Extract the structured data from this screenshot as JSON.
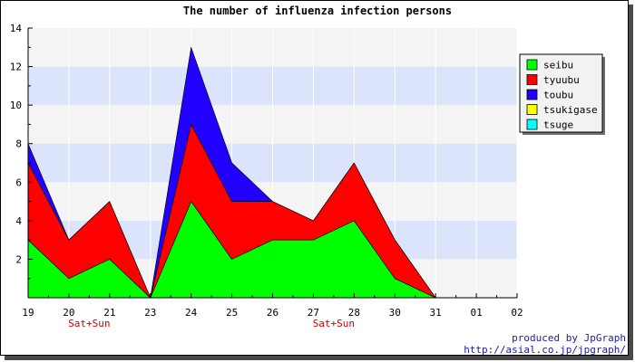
{
  "chart_data": {
    "type": "area",
    "title": "The number of influenza infection persons",
    "x_ticks": [
      "19",
      "20",
      "21",
      "23",
      "24",
      "25",
      "26",
      "27",
      "28",
      "30",
      "31",
      "01",
      "02"
    ],
    "weekend_labels": [
      {
        "after": "20",
        "text": "Sat+Sun"
      },
      {
        "after": "27",
        "text": "Sat+Sun"
      }
    ],
    "y_range": [
      0,
      14
    ],
    "y_ticks": [
      2,
      4,
      6,
      8,
      10,
      12,
      14
    ],
    "stacked": true,
    "grid": "horizontal bands",
    "legend_position": "right",
    "series": [
      {
        "name": "seibu",
        "color": "#00ff00",
        "values": [
          3,
          1,
          2,
          0,
          5,
          2,
          3,
          3,
          4,
          1,
          0,
          null,
          null
        ]
      },
      {
        "name": "tyuubu",
        "color": "#ff0000",
        "values": [
          4,
          2,
          3,
          0,
          4,
          3,
          2,
          1,
          3,
          2,
          0,
          null,
          null
        ]
      },
      {
        "name": "toubu",
        "color": "#2200ff",
        "values": [
          1,
          0,
          0,
          0,
          4,
          2,
          0,
          0,
          0,
          0,
          0,
          null,
          null
        ]
      },
      {
        "name": "tsukigase",
        "color": "#ffff00",
        "values": [
          0,
          0,
          0,
          0,
          0,
          0,
          0,
          0,
          0,
          0,
          0,
          null,
          null
        ]
      },
      {
        "name": "tsuge",
        "color": "#00ffff",
        "values": [
          0,
          0,
          0,
          0,
          0,
          0,
          0,
          0,
          0,
          0,
          0,
          null,
          null
        ]
      }
    ],
    "colors": {
      "band_light": "#f4f4f4",
      "band_blue": "#dce4fb",
      "weekend_label": "#cc0000",
      "credit": "#1a1aa6"
    }
  },
  "credits": {
    "line1": "produced by JpGraph",
    "line2": "http://asial.co.jp/jpgraph/"
  }
}
